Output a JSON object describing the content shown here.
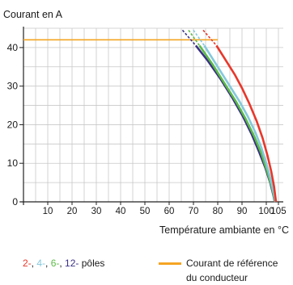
{
  "chart_data": {
    "type": "line",
    "ylabel": "Courant en A",
    "xlabel": "Température ambiante en °C",
    "xlim": [
      0,
      107
    ],
    "ylim": [
      0,
      45
    ],
    "x_ticks": [
      10,
      20,
      30,
      40,
      50,
      60,
      70,
      80,
      90,
      100,
      105
    ],
    "y_ticks": [
      0,
      10,
      20,
      30,
      40
    ],
    "grid": true,
    "series": [
      {
        "name": "2-",
        "color": "#e8372a",
        "dashed": [
          [
            74,
            44.5
          ],
          [
            79.5,
            40.5
          ]
        ],
        "solid": [
          [
            79.5,
            40.5
          ],
          [
            83,
            37
          ],
          [
            87,
            33
          ],
          [
            90,
            29.5
          ],
          [
            93,
            25.5
          ],
          [
            96,
            21
          ],
          [
            98.5,
            16.5
          ],
          [
            100.5,
            12
          ],
          [
            102,
            8
          ],
          [
            103.2,
            4
          ],
          [
            104,
            0
          ]
        ]
      },
      {
        "name": "4-",
        "color": "#84c8dc",
        "dashed": [
          [
            70,
            44.5
          ],
          [
            74.5,
            40.5
          ]
        ],
        "solid": [
          [
            74.5,
            40.5
          ],
          [
            80,
            35
          ],
          [
            85,
            30
          ],
          [
            89,
            26
          ],
          [
            92.5,
            22
          ],
          [
            95.5,
            18
          ],
          [
            98,
            14
          ],
          [
            100,
            10
          ],
          [
            101.7,
            6
          ],
          [
            103,
            2.5
          ],
          [
            103.8,
            0
          ]
        ]
      },
      {
        "name": "6-",
        "color": "#5cba47",
        "dashed": [
          [
            68,
            44.5
          ],
          [
            72.5,
            40.5
          ]
        ],
        "solid": [
          [
            72.5,
            40.5
          ],
          [
            78,
            35.5
          ],
          [
            83,
            30.5
          ],
          [
            87.5,
            26
          ],
          [
            91.5,
            21.5
          ],
          [
            95,
            17
          ],
          [
            98,
            12.5
          ],
          [
            100.3,
            8
          ],
          [
            102.2,
            4
          ],
          [
            103.3,
            1
          ],
          [
            103.6,
            0
          ]
        ]
      },
      {
        "name": "12-",
        "color": "#3a3086",
        "dashed": [
          [
            65.5,
            44.5
          ],
          [
            71,
            40.5
          ]
        ],
        "solid": [
          [
            71,
            40.5
          ],
          [
            76,
            36.5
          ],
          [
            81,
            32
          ],
          [
            86,
            27
          ],
          [
            90.5,
            22
          ],
          [
            94,
            17.5
          ],
          [
            97,
            13
          ],
          [
            99.5,
            9
          ],
          [
            101.6,
            5
          ],
          [
            103,
            1.5
          ],
          [
            103.5,
            0
          ]
        ]
      }
    ],
    "reference": {
      "name": "Courant de référence du conducteur",
      "y": 42,
      "x_end": 80,
      "color": "#f5a523"
    }
  },
  "legend": {
    "poles_items": [
      {
        "text": "2-",
        "color": "#e8372a"
      },
      {
        "text": "4-",
        "color": "#84c8dc"
      },
      {
        "text": "6-",
        "color": "#5cba47"
      },
      {
        "text": "12-",
        "color": "#3a3086"
      }
    ],
    "poles_suffix": "pôles",
    "reference_label": "Courant de référence du conducteur"
  }
}
